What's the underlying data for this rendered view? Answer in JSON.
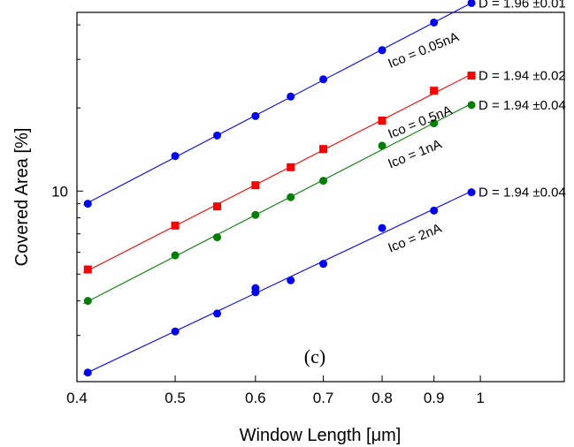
{
  "chart_data": {
    "type": "scatter",
    "panel_label": "(c)",
    "xlabel": "Window Length [μm]",
    "ylabel": "Covered Area [%]",
    "xscale": "log",
    "yscale": "log",
    "xlim": [
      0.4,
      1.21
    ],
    "ylim": [
      2.04,
      44.4
    ],
    "x_ticks": [
      0.4,
      0.5,
      0.6,
      0.7,
      0.8,
      0.9,
      1
    ],
    "x_tick_labels": [
      "0.4",
      "0.5",
      "0.6",
      "0.7",
      "0.8",
      "0.9",
      "1"
    ],
    "y_ticks": [
      10
    ],
    "y_tick_labels": [
      "10"
    ],
    "grid": false,
    "series": [
      {
        "name": "Ico = 0.05nA",
        "color": "#0000ff",
        "marker": "circle",
        "fit_label": "D = 1.96 ±0.01",
        "x": [
          0.41,
          0.5,
          0.55,
          0.6,
          0.65,
          0.7,
          0.8,
          0.9,
          0.98
        ],
        "y": [
          9.0,
          13.4,
          15.9,
          18.7,
          22.0,
          25.4,
          32.4,
          40.8,
          48.0
        ]
      },
      {
        "name": "Ico = 0.5nA",
        "color": "#ff0000",
        "marker": "square",
        "fit_label": "D = 1.94 ±0.02",
        "x": [
          0.41,
          0.5,
          0.55,
          0.6,
          0.65,
          0.7,
          0.8,
          0.9,
          0.98
        ],
        "y": [
          5.2,
          7.5,
          8.8,
          10.5,
          12.2,
          14.2,
          18.0,
          23.1,
          26.2
        ]
      },
      {
        "name": "Ico = 1nA",
        "color": "#008000",
        "marker": "circle",
        "fit_label": "D = 1.94 ±0.04",
        "x": [
          0.41,
          0.5,
          0.55,
          0.6,
          0.65,
          0.7,
          0.8,
          0.9,
          0.98
        ],
        "y": [
          4.0,
          5.85,
          6.8,
          8.2,
          9.5,
          10.9,
          14.6,
          17.6,
          20.5
        ]
      },
      {
        "name": "Ico = 2nA",
        "color": "#0000ff",
        "marker": "circle",
        "fit_label": "D = 1.94 ±0.04",
        "x": [
          0.41,
          0.5,
          0.55,
          0.6,
          0.6,
          0.65,
          0.7,
          0.8,
          0.9,
          0.98
        ],
        "y": [
          2.2,
          3.1,
          3.6,
          4.3,
          4.45,
          4.75,
          5.45,
          7.35,
          8.5,
          9.9
        ]
      }
    ]
  }
}
